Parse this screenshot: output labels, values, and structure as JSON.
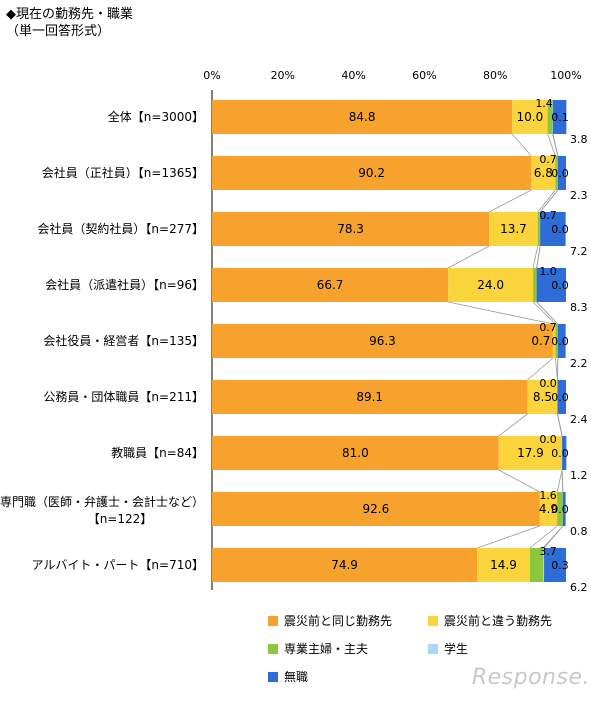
{
  "title": "◆現在の勤務先・職業",
  "subtitle": "（単一回答形式）",
  "watermark": "Response.",
  "colors": {
    "same": "#F7A22C",
    "different": "#FAD43A",
    "homemaker": "#8CC63E",
    "student": "#A9D7F4",
    "unemployed": "#2E6CD8",
    "connector": "#999999"
  },
  "chart_data": {
    "type": "bar",
    "orientation": "horizontal-stacked-100",
    "ticks": [
      "0%",
      "20%",
      "40%",
      "60%",
      "80%",
      "100%"
    ],
    "xlim": [
      0,
      100
    ],
    "legend_position": "bottom",
    "categories": [
      "全体【n=3000】",
      "会社員（正社員）【n=1365】",
      "会社員（契約社員）【n=277】",
      "会社員（派遣社員）【n=96】",
      "会社役員・経営者【n=135】",
      "公務員・団体職員【n=211】",
      "教職員【n=84】",
      "専門職（医師・弁護士・会計士など）【n=122】",
      "アルバイト・パート【n=710】"
    ],
    "series": [
      {
        "name": "震災前と同じ勤務先",
        "key": "same",
        "values": [
          84.8,
          90.2,
          78.3,
          66.7,
          96.3,
          89.1,
          81.0,
          92.6,
          74.9
        ]
      },
      {
        "name": "震災前と違う勤務先",
        "key": "different",
        "values": [
          10.0,
          6.8,
          13.7,
          24.0,
          0.7,
          8.5,
          17.9,
          4.9,
          14.9
        ]
      },
      {
        "name": "専業主婦・主夫",
        "key": "homemaker",
        "values": [
          1.4,
          0.7,
          0.7,
          1.0,
          0.7,
          0.0,
          0.0,
          1.6,
          3.7
        ]
      },
      {
        "name": "学生",
        "key": "student",
        "values": [
          0.1,
          0.0,
          0.0,
          0.0,
          0.0,
          0.0,
          0.0,
          0.0,
          0.3
        ]
      },
      {
        "name": "無職",
        "key": "unemployed",
        "values": [
          3.8,
          2.3,
          7.2,
          8.3,
          2.2,
          2.4,
          1.2,
          0.8,
          6.2
        ]
      }
    ],
    "data_labels": [
      [
        "84.8",
        "10.0",
        "1.4",
        "0.1",
        "3.8"
      ],
      [
        "90.2",
        "6.8",
        "0.7",
        "0.0",
        "2.3"
      ],
      [
        "78.3",
        "13.7",
        "0.7",
        "0.0",
        "7.2"
      ],
      [
        "66.7",
        "24.0",
        "1.0",
        "0.0",
        "8.3"
      ],
      [
        "96.3",
        "0.7",
        "0.7",
        "0.0",
        "2.2"
      ],
      [
        "89.1",
        "8.5",
        "0.0",
        "0.0",
        "2.4"
      ],
      [
        "81.0",
        "17.9",
        "0.0",
        "0.0",
        "1.2"
      ],
      [
        "92.6",
        "4.9",
        "1.6",
        "0.0",
        "0.8"
      ],
      [
        "74.9",
        "14.9",
        "3.7",
        "0.3",
        "6.2"
      ]
    ]
  }
}
